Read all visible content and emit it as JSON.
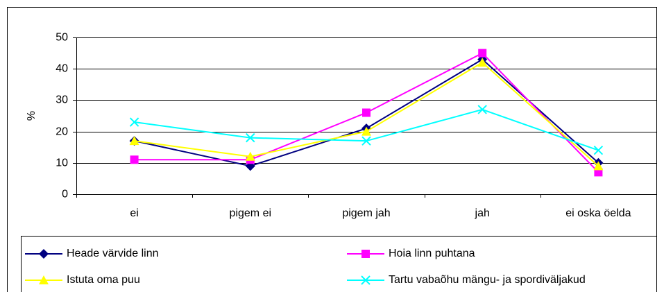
{
  "chart_data": {
    "type": "line",
    "y_label": "%",
    "categories": [
      "ei",
      "pigem ei",
      "pigem jah",
      "jah",
      "ei oska öelda"
    ],
    "series": [
      {
        "name": "Heade värvide linn",
        "color": "#000080",
        "marker": "diamond",
        "values": [
          17,
          9,
          21,
          43,
          10
        ]
      },
      {
        "name": "Hoia linn puhtana",
        "color": "#ff00ff",
        "marker": "square",
        "values": [
          11,
          11,
          26,
          45,
          7
        ]
      },
      {
        "name": "Istuta oma puu",
        "color": "#ffff00",
        "marker": "triangle",
        "values": [
          17,
          12,
          20,
          42,
          9
        ]
      },
      {
        "name": "Tartu vabaõhu mängu- ja spordiväljakud",
        "color": "#00ffff",
        "marker": "x",
        "values": [
          23,
          18,
          17,
          27,
          14
        ]
      }
    ],
    "ylim": [
      0,
      50
    ],
    "yticks": [
      0,
      10,
      20,
      30,
      40,
      50
    ],
    "grid": true
  }
}
